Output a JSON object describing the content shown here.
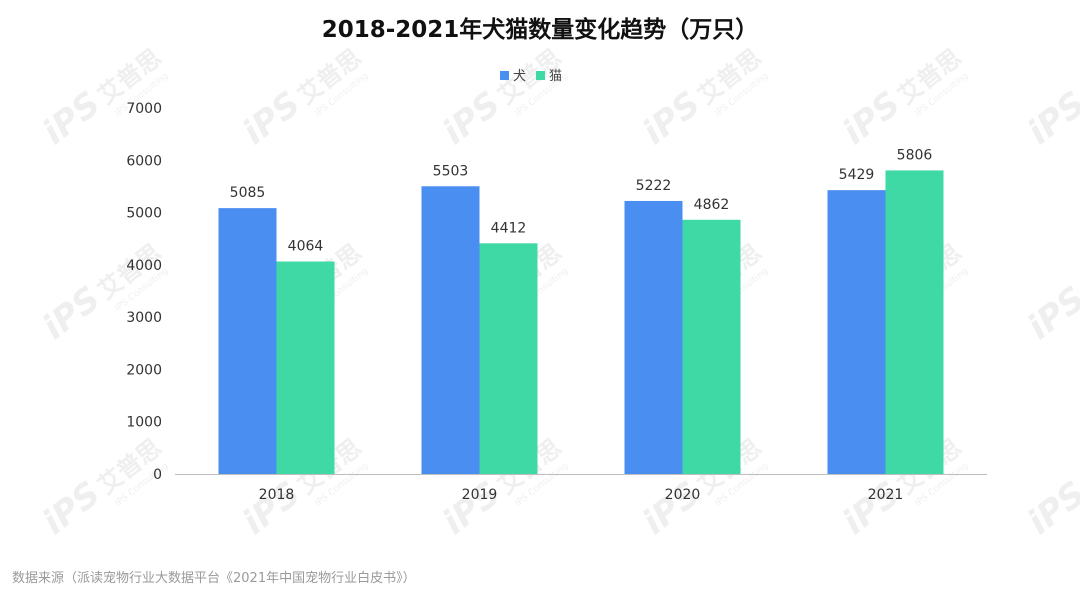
{
  "title": "2018-2021年犬猫数量变化趋势（万只）",
  "source": "数据来源（派读宠物行业大数据平台《2021年中国宠物行业白皮书》）",
  "watermark": {
    "brand": "艾普思",
    "tagline": "IPS Consulting",
    "logo": "iPS"
  },
  "chart_data": {
    "type": "bar",
    "categories": [
      "2018",
      "2019",
      "2020",
      "2021"
    ],
    "series": [
      {
        "name": "犬",
        "values": [
          5085,
          5503,
          5222,
          5429
        ],
        "color": "#4a8ef2"
      },
      {
        "name": "猫",
        "values": [
          4064,
          4412,
          4862,
          5806
        ],
        "color": "#3ed9a4"
      }
    ],
    "yticks": [
      "0",
      "1000",
      "2000",
      "3000",
      "4000",
      "5000",
      "6000",
      "7000"
    ],
    "ylim": [
      0,
      7000
    ],
    "legend_position": "top-center",
    "grid": false
  }
}
